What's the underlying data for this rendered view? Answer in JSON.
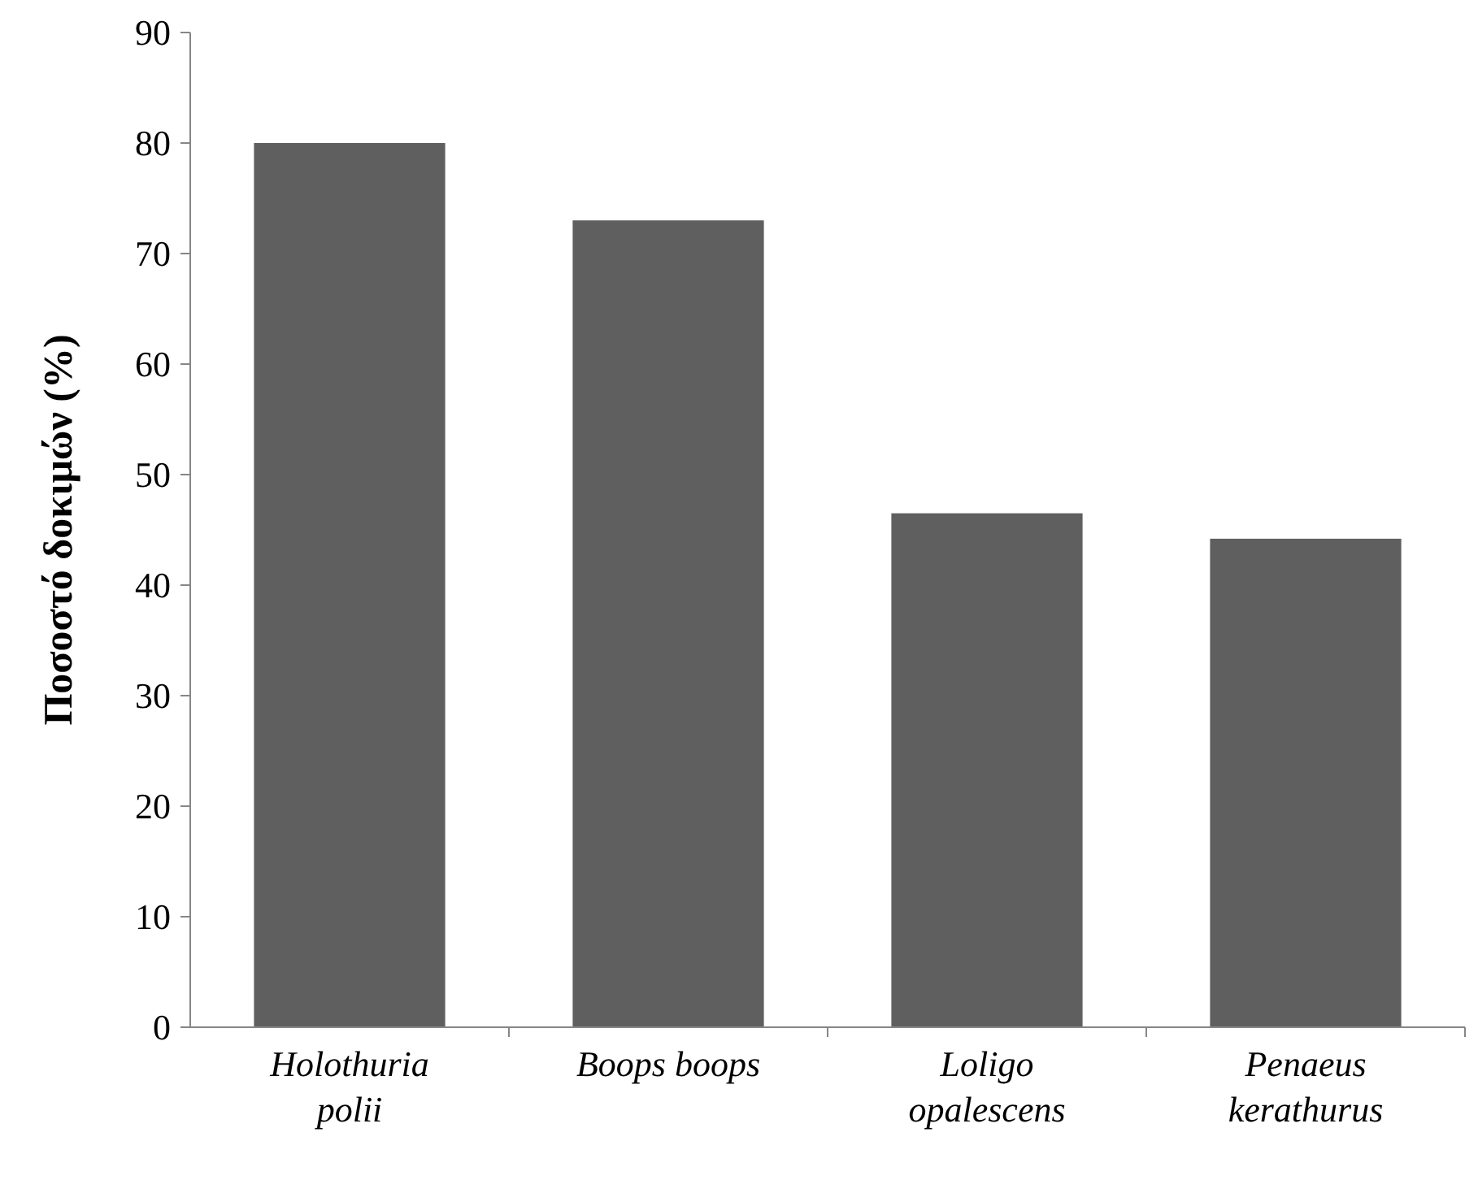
{
  "chart_data": {
    "type": "bar",
    "ylabel": "Ποσοστό δοκιμών (%)",
    "categories": [
      "Holothuria polii",
      "Boops boops",
      "Loligo opalescens",
      "Penaeus kerathurus"
    ],
    "values": [
      80,
      73,
      46.5,
      44.2
    ],
    "color": "#5f5f5f",
    "ylim": [
      0,
      90
    ],
    "yticks": [
      0,
      10,
      20,
      30,
      40,
      50,
      60,
      70,
      80,
      90
    ]
  }
}
